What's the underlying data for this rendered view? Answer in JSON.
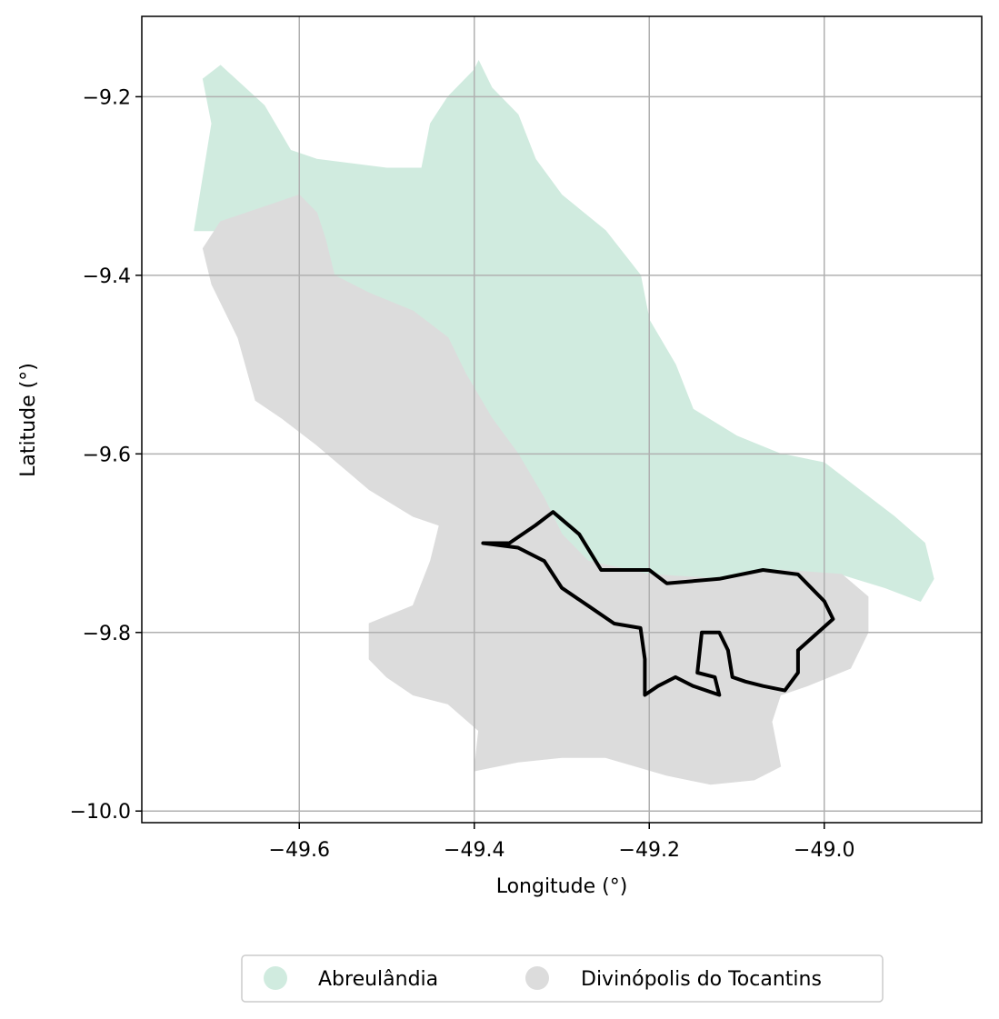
{
  "chart_data": {
    "type": "map",
    "xlabel": "Longitude (°)",
    "ylabel": "Latitude (°)",
    "xlim": [
      -49.78,
      -48.82
    ],
    "ylim": [
      -10.013,
      -9.11
    ],
    "xticks": [
      -49.6,
      -49.4,
      -49.2,
      -49.0
    ],
    "yticks": [
      -9.2,
      -9.4,
      -9.6,
      -9.8,
      -10.0
    ],
    "xtick_labels": [
      "−49.6",
      "−49.4",
      "−49.2",
      "−49.0"
    ],
    "ytick_labels": [
      "−9.2",
      "−9.4",
      "−9.6",
      "−9.8",
      "−10.0"
    ],
    "grid": true,
    "legend_position": "bottom-center",
    "regions": [
      {
        "name": "Abreulândia",
        "color": "#d0ebdf",
        "outline": [
          [
            -49.72,
            -9.35
          ],
          [
            -49.71,
            -9.29
          ],
          [
            -49.7,
            -9.23
          ],
          [
            -49.71,
            -9.18
          ],
          [
            -49.69,
            -9.165
          ],
          [
            -49.64,
            -9.21
          ],
          [
            -49.61,
            -9.26
          ],
          [
            -49.58,
            -9.27
          ],
          [
            -49.54,
            -9.275
          ],
          [
            -49.5,
            -9.28
          ],
          [
            -49.46,
            -9.28
          ],
          [
            -49.45,
            -9.23
          ],
          [
            -49.43,
            -9.2
          ],
          [
            -49.4,
            -9.17
          ],
          [
            -49.395,
            -9.16
          ],
          [
            -49.38,
            -9.19
          ],
          [
            -49.35,
            -9.22
          ],
          [
            -49.33,
            -9.27
          ],
          [
            -49.3,
            -9.31
          ],
          [
            -49.25,
            -9.35
          ],
          [
            -49.21,
            -9.4
          ],
          [
            -49.2,
            -9.45
          ],
          [
            -49.17,
            -9.5
          ],
          [
            -49.15,
            -9.55
          ],
          [
            -49.1,
            -9.58
          ],
          [
            -49.05,
            -9.6
          ],
          [
            -49.0,
            -9.61
          ],
          [
            -48.96,
            -9.64
          ],
          [
            -48.92,
            -9.67
          ],
          [
            -48.885,
            -9.7
          ],
          [
            -48.875,
            -9.74
          ],
          [
            -48.89,
            -9.765
          ],
          [
            -48.93,
            -9.75
          ],
          [
            -48.98,
            -9.735
          ],
          [
            -49.05,
            -9.73
          ],
          [
            -49.12,
            -9.74
          ],
          [
            -49.2,
            -9.735
          ],
          [
            -49.27,
            -9.72
          ],
          [
            -49.3,
            -9.69
          ],
          [
            -49.32,
            -9.65
          ],
          [
            -49.35,
            -9.6
          ],
          [
            -49.38,
            -9.56
          ],
          [
            -49.41,
            -9.51
          ],
          [
            -49.43,
            -9.47
          ],
          [
            -49.47,
            -9.44
          ],
          [
            -49.52,
            -9.42
          ],
          [
            -49.57,
            -9.4
          ],
          [
            -49.61,
            -9.37
          ],
          [
            -49.65,
            -9.35
          ],
          [
            -49.7,
            -9.35
          ]
        ]
      },
      {
        "name": "Divinópolis do Tocantins",
        "color": "#dcdcdc",
        "outline": [
          [
            -49.69,
            -9.34
          ],
          [
            -49.66,
            -9.33
          ],
          [
            -49.63,
            -9.32
          ],
          [
            -49.6,
            -9.31
          ],
          [
            -49.58,
            -9.33
          ],
          [
            -49.57,
            -9.36
          ],
          [
            -49.56,
            -9.4
          ],
          [
            -49.52,
            -9.42
          ],
          [
            -49.47,
            -9.44
          ],
          [
            -49.43,
            -9.47
          ],
          [
            -49.41,
            -9.51
          ],
          [
            -49.38,
            -9.56
          ],
          [
            -49.35,
            -9.6
          ],
          [
            -49.32,
            -9.65
          ],
          [
            -49.3,
            -9.69
          ],
          [
            -49.27,
            -9.72
          ],
          [
            -49.2,
            -9.735
          ],
          [
            -49.12,
            -9.74
          ],
          [
            -49.05,
            -9.73
          ],
          [
            -48.98,
            -9.735
          ],
          [
            -48.95,
            -9.76
          ],
          [
            -48.95,
            -9.8
          ],
          [
            -48.97,
            -9.84
          ],
          [
            -49.02,
            -9.86
          ],
          [
            -49.05,
            -9.87
          ],
          [
            -49.06,
            -9.9
          ],
          [
            -49.05,
            -9.95
          ],
          [
            -49.08,
            -9.965
          ],
          [
            -49.13,
            -9.97
          ],
          [
            -49.18,
            -9.96
          ],
          [
            -49.25,
            -9.94
          ],
          [
            -49.3,
            -9.94
          ],
          [
            -49.35,
            -9.945
          ],
          [
            -49.4,
            -9.955
          ],
          [
            -49.395,
            -9.91
          ],
          [
            -49.43,
            -9.88
          ],
          [
            -49.47,
            -9.87
          ],
          [
            -49.5,
            -9.85
          ],
          [
            -49.52,
            -9.83
          ],
          [
            -49.52,
            -9.79
          ],
          [
            -49.47,
            -9.77
          ],
          [
            -49.45,
            -9.72
          ],
          [
            -49.44,
            -9.68
          ],
          [
            -49.47,
            -9.67
          ],
          [
            -49.52,
            -9.64
          ],
          [
            -49.58,
            -9.59
          ],
          [
            -49.62,
            -9.56
          ],
          [
            -49.65,
            -9.54
          ],
          [
            -49.67,
            -9.47
          ],
          [
            -49.7,
            -9.41
          ],
          [
            -49.71,
            -9.37
          ]
        ]
      }
    ],
    "outline_shape": {
      "color": "#000000",
      "points": [
        [
          -49.39,
          -9.7
        ],
        [
          -49.36,
          -9.7
        ],
        [
          -49.33,
          -9.68
        ],
        [
          -49.31,
          -9.665
        ],
        [
          -49.28,
          -9.69
        ],
        [
          -49.255,
          -9.73
        ],
        [
          -49.2,
          -9.73
        ],
        [
          -49.18,
          -9.745
        ],
        [
          -49.12,
          -9.74
        ],
        [
          -49.07,
          -9.73
        ],
        [
          -49.03,
          -9.735
        ],
        [
          -49.0,
          -9.765
        ],
        [
          -48.99,
          -9.785
        ],
        [
          -49.03,
          -9.82
        ],
        [
          -49.03,
          -9.845
        ],
        [
          -49.045,
          -9.865
        ],
        [
          -49.07,
          -9.86
        ],
        [
          -49.09,
          -9.855
        ],
        [
          -49.105,
          -9.85
        ],
        [
          -49.11,
          -9.82
        ],
        [
          -49.12,
          -9.8
        ],
        [
          -49.14,
          -9.8
        ],
        [
          -49.145,
          -9.845
        ],
        [
          -49.125,
          -9.85
        ],
        [
          -49.12,
          -9.87
        ],
        [
          -49.15,
          -9.86
        ],
        [
          -49.17,
          -9.85
        ],
        [
          -49.19,
          -9.86
        ],
        [
          -49.205,
          -9.87
        ],
        [
          -49.205,
          -9.83
        ],
        [
          -49.21,
          -9.795
        ],
        [
          -49.24,
          -9.79
        ],
        [
          -49.27,
          -9.77
        ],
        [
          -49.3,
          -9.75
        ],
        [
          -49.32,
          -9.72
        ],
        [
          -49.35,
          -9.705
        ],
        [
          -49.39,
          -9.7
        ]
      ]
    }
  },
  "legend": {
    "items": [
      {
        "label": "Abreulândia",
        "color": "#d0ebdf"
      },
      {
        "label": "Divinópolis do Tocantins",
        "color": "#dcdcdc"
      }
    ]
  }
}
